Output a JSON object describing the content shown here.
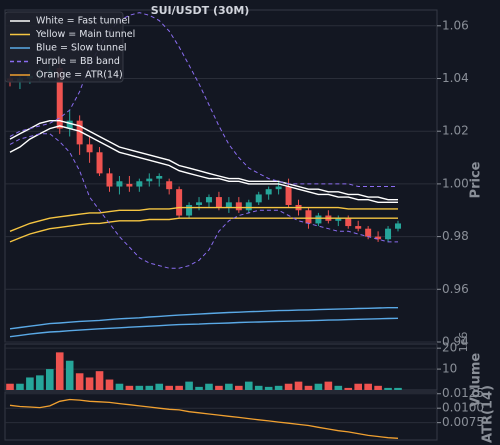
{
  "chart_data": [
    {
      "type": "candlestick",
      "title": "SUI/USDT (30M)",
      "y_label": "Price",
      "ylim": [
        0.94,
        1.066
      ],
      "yticks": [
        {
          "value": 0.94,
          "label": "0.94"
        },
        0.96,
        0.98,
        {
          "value": 1.0,
          "label": "1.00"
        },
        1.02,
        1.04,
        1.06
      ],
      "grid": true,
      "legend": "upper-left",
      "up_color": "#26a69a",
      "down_color": "#ef5350",
      "open": [
        1.04,
        1.039,
        1.04,
        1.041,
        1.042,
        1.044,
        1.021,
        1.024,
        1.015,
        1.012,
        1.004,
        0.999,
        1.0,
        0.999,
        1.001,
        1.002,
        1.001,
        0.998,
        0.988,
        0.992,
        0.993,
        0.995,
        0.991,
        0.993,
        0.99,
        0.993,
        0.996,
        0.998,
        0.999,
        0.992,
        0.99,
        0.985,
        0.988,
        0.986,
        0.987,
        0.984,
        0.983,
        0.98,
        0.979,
        0.983
      ],
      "high": [
        1.042,
        1.041,
        1.043,
        1.044,
        1.045,
        1.046,
        1.028,
        1.026,
        1.018,
        1.014,
        1.006,
        1.003,
        1.003,
        1.002,
        1.004,
        1.004,
        1.002,
        0.999,
        0.993,
        0.995,
        0.996,
        0.997,
        0.995,
        0.995,
        0.994,
        0.997,
        0.999,
        1.001,
        1.002,
        0.994,
        0.991,
        0.989,
        0.99,
        0.988,
        0.988,
        0.986,
        0.984,
        0.982,
        0.984,
        0.986
      ],
      "low": [
        1.037,
        1.036,
        1.038,
        1.039,
        1.04,
        1.019,
        1.018,
        1.011,
        1.008,
        1.003,
        0.997,
        0.996,
        0.997,
        0.997,
        0.999,
        0.999,
        0.996,
        0.987,
        0.987,
        0.99,
        0.991,
        0.99,
        0.989,
        0.989,
        0.989,
        0.992,
        0.994,
        0.996,
        0.991,
        0.988,
        0.983,
        0.984,
        0.985,
        0.984,
        0.983,
        0.982,
        0.979,
        0.978,
        0.978,
        0.982
      ],
      "close": [
        1.039,
        1.04,
        1.041,
        1.042,
        1.043,
        1.021,
        1.024,
        1.015,
        1.012,
        1.004,
        0.999,
        1.001,
        0.999,
        1.001,
        1.002,
        1.003,
        0.998,
        0.988,
        0.992,
        0.993,
        0.995,
        0.991,
        0.993,
        0.99,
        0.993,
        0.996,
        0.998,
        0.999,
        0.992,
        0.99,
        0.985,
        0.988,
        0.986,
        0.987,
        0.984,
        0.983,
        0.98,
        0.979,
        0.983,
        0.985
      ],
      "series": [
        {
          "name": "White = Fast tunnel",
          "color": "#ffffff",
          "dashed": false,
          "upper": [
            1.017,
            1.019,
            1.021,
            1.023,
            1.024,
            1.024,
            1.023,
            1.022,
            1.02,
            1.018,
            1.016,
            1.014,
            1.013,
            1.012,
            1.011,
            1.01,
            1.009,
            1.007,
            1.006,
            1.005,
            1.004,
            1.003,
            1.002,
            1.002,
            1.001,
            1.001,
            1.001,
            1.001,
            1.0,
            0.999,
            0.998,
            0.998,
            0.997,
            0.997,
            0.996,
            0.996,
            0.995,
            0.995,
            0.994,
            0.994
          ],
          "lower": [
            1.012,
            1.014,
            1.017,
            1.019,
            1.021,
            1.022,
            1.021,
            1.02,
            1.018,
            1.016,
            1.014,
            1.012,
            1.011,
            1.01,
            1.009,
            1.008,
            1.007,
            1.005,
            1.004,
            1.003,
            1.002,
            1.002,
            1.001,
            1.001,
            1.0,
            1.0,
            1.0,
            1.0,
            0.999,
            0.998,
            0.997,
            0.996,
            0.996,
            0.995,
            0.995,
            0.994,
            0.994,
            0.993,
            0.993,
            0.993
          ]
        },
        {
          "name": "Yellow = Main tunnel",
          "color": "#f5c542",
          "dashed": false,
          "upper": [
            0.982,
            0.9835,
            0.985,
            0.986,
            0.987,
            0.9875,
            0.988,
            0.9885,
            0.989,
            0.989,
            0.9895,
            0.99,
            0.99,
            0.99,
            0.9905,
            0.9905,
            0.9905,
            0.991,
            0.991,
            0.991,
            0.991,
            0.991,
            0.991,
            0.991,
            0.991,
            0.991,
            0.991,
            0.991,
            0.991,
            0.991,
            0.991,
            0.991,
            0.991,
            0.991,
            0.9905,
            0.9905,
            0.9905,
            0.9905,
            0.9905,
            0.9905
          ],
          "lower": [
            0.978,
            0.9795,
            0.981,
            0.982,
            0.983,
            0.9835,
            0.984,
            0.9845,
            0.985,
            0.985,
            0.9855,
            0.986,
            0.986,
            0.986,
            0.9865,
            0.9865,
            0.9865,
            0.987,
            0.987,
            0.987,
            0.987,
            0.987,
            0.987,
            0.987,
            0.987,
            0.987,
            0.987,
            0.987,
            0.987,
            0.987,
            0.987,
            0.987,
            0.987,
            0.987,
            0.987,
            0.987,
            0.987,
            0.987,
            0.987,
            0.987
          ]
        },
        {
          "name": "Blue = Slow tunnel",
          "color": "#5aa9e6",
          "dashed": false,
          "upper": [
            0.945,
            0.9455,
            0.946,
            0.9465,
            0.947,
            0.9472,
            0.9475,
            0.9478,
            0.948,
            0.9482,
            0.9485,
            0.9488,
            0.949,
            0.9492,
            0.9495,
            0.9497,
            0.95,
            0.9502,
            0.9504,
            0.9506,
            0.9508,
            0.951,
            0.9512,
            0.9513,
            0.9515,
            0.9516,
            0.9518,
            0.9519,
            0.952,
            0.9521,
            0.9522,
            0.9523,
            0.9524,
            0.9525,
            0.9526,
            0.9527,
            0.9528,
            0.9529,
            0.953,
            0.953
          ],
          "lower": [
            0.942,
            0.9425,
            0.943,
            0.9434,
            0.9438,
            0.944,
            0.9443,
            0.9445,
            0.9448,
            0.945,
            0.9452,
            0.9454,
            0.9456,
            0.9458,
            0.946,
            0.9462,
            0.9464,
            0.9466,
            0.9467,
            0.9468,
            0.947,
            0.9471,
            0.9472,
            0.9474,
            0.9475,
            0.9476,
            0.9477,
            0.9478,
            0.9479,
            0.948,
            0.9481,
            0.9482,
            0.9483,
            0.9484,
            0.9485,
            0.9486,
            0.9487,
            0.9488,
            0.9489,
            0.949
          ]
        },
        {
          "name": "Purple = BB band",
          "color": "#8a6cf0",
          "dashed": true,
          "upper": [
            1.018,
            1.02,
            1.021,
            1.022,
            1.023,
            1.025,
            1.028,
            1.035,
            1.045,
            1.052,
            1.058,
            1.062,
            1.064,
            1.065,
            1.064,
            1.062,
            1.058,
            1.052,
            1.045,
            1.038,
            1.03,
            1.022,
            1.015,
            1.01,
            1.006,
            1.004,
            1.002,
            1.001,
            1.0,
            1.0,
            1.0,
            1.0,
            1.0,
            1.0,
            1.0,
            0.999,
            0.999,
            0.999,
            0.999,
            0.999
          ],
          "lower": [
            1.015,
            1.017,
            1.018,
            1.019,
            1.019,
            1.016,
            1.012,
            1.005,
            0.995,
            0.99,
            0.985,
            0.98,
            0.976,
            0.972,
            0.97,
            0.969,
            0.968,
            0.968,
            0.969,
            0.971,
            0.975,
            0.982,
            0.986,
            0.988,
            0.989,
            0.99,
            0.99,
            0.99,
            0.988,
            0.986,
            0.985,
            0.984,
            0.983,
            0.982,
            0.982,
            0.981,
            0.98,
            0.979,
            0.978,
            0.978
          ]
        }
      ]
    },
    {
      "type": "bar",
      "y_label": "Volume",
      "offset_label": "1e6",
      "ylim": [
        0,
        22
      ],
      "yticks": [
        10,
        20
      ],
      "grid": true,
      "up_color": "#26a69a",
      "down_color": "#ef5350",
      "values": [
        3,
        3,
        6,
        7,
        10,
        18,
        14,
        8,
        6,
        9,
        5,
        3,
        2,
        2,
        2,
        3,
        2,
        2,
        4,
        1.5,
        3,
        2,
        3,
        2,
        4,
        2,
        1.5,
        2,
        3,
        4,
        2,
        3,
        4,
        2,
        1,
        3,
        3,
        2,
        1,
        1
      ]
    },
    {
      "type": "line",
      "y_label": "ATR(14)",
      "ylim": [
        0.0045,
        0.0128
      ],
      "yticks": [
        0.0075,
        {
          "value": 0.01,
          "label": "0.0100"
        },
        0.0125
      ],
      "grid": true,
      "series": [
        {
          "name": "Orange = ATR(14)",
          "color": "#f0a030",
          "values": [
            0.0105,
            0.0103,
            0.0102,
            0.0101,
            0.0104,
            0.0112,
            0.0115,
            0.0114,
            0.0112,
            0.0111,
            0.011,
            0.0108,
            0.0106,
            0.0104,
            0.0102,
            0.01,
            0.0098,
            0.0097,
            0.0094,
            0.0092,
            0.009,
            0.0088,
            0.0086,
            0.0084,
            0.0082,
            0.008,
            0.0078,
            0.0076,
            0.0074,
            0.0072,
            0.007,
            0.0067,
            0.0064,
            0.0061,
            0.0059,
            0.0056,
            0.0053,
            0.0051,
            0.0049,
            0.0048
          ]
        }
      ]
    }
  ]
}
